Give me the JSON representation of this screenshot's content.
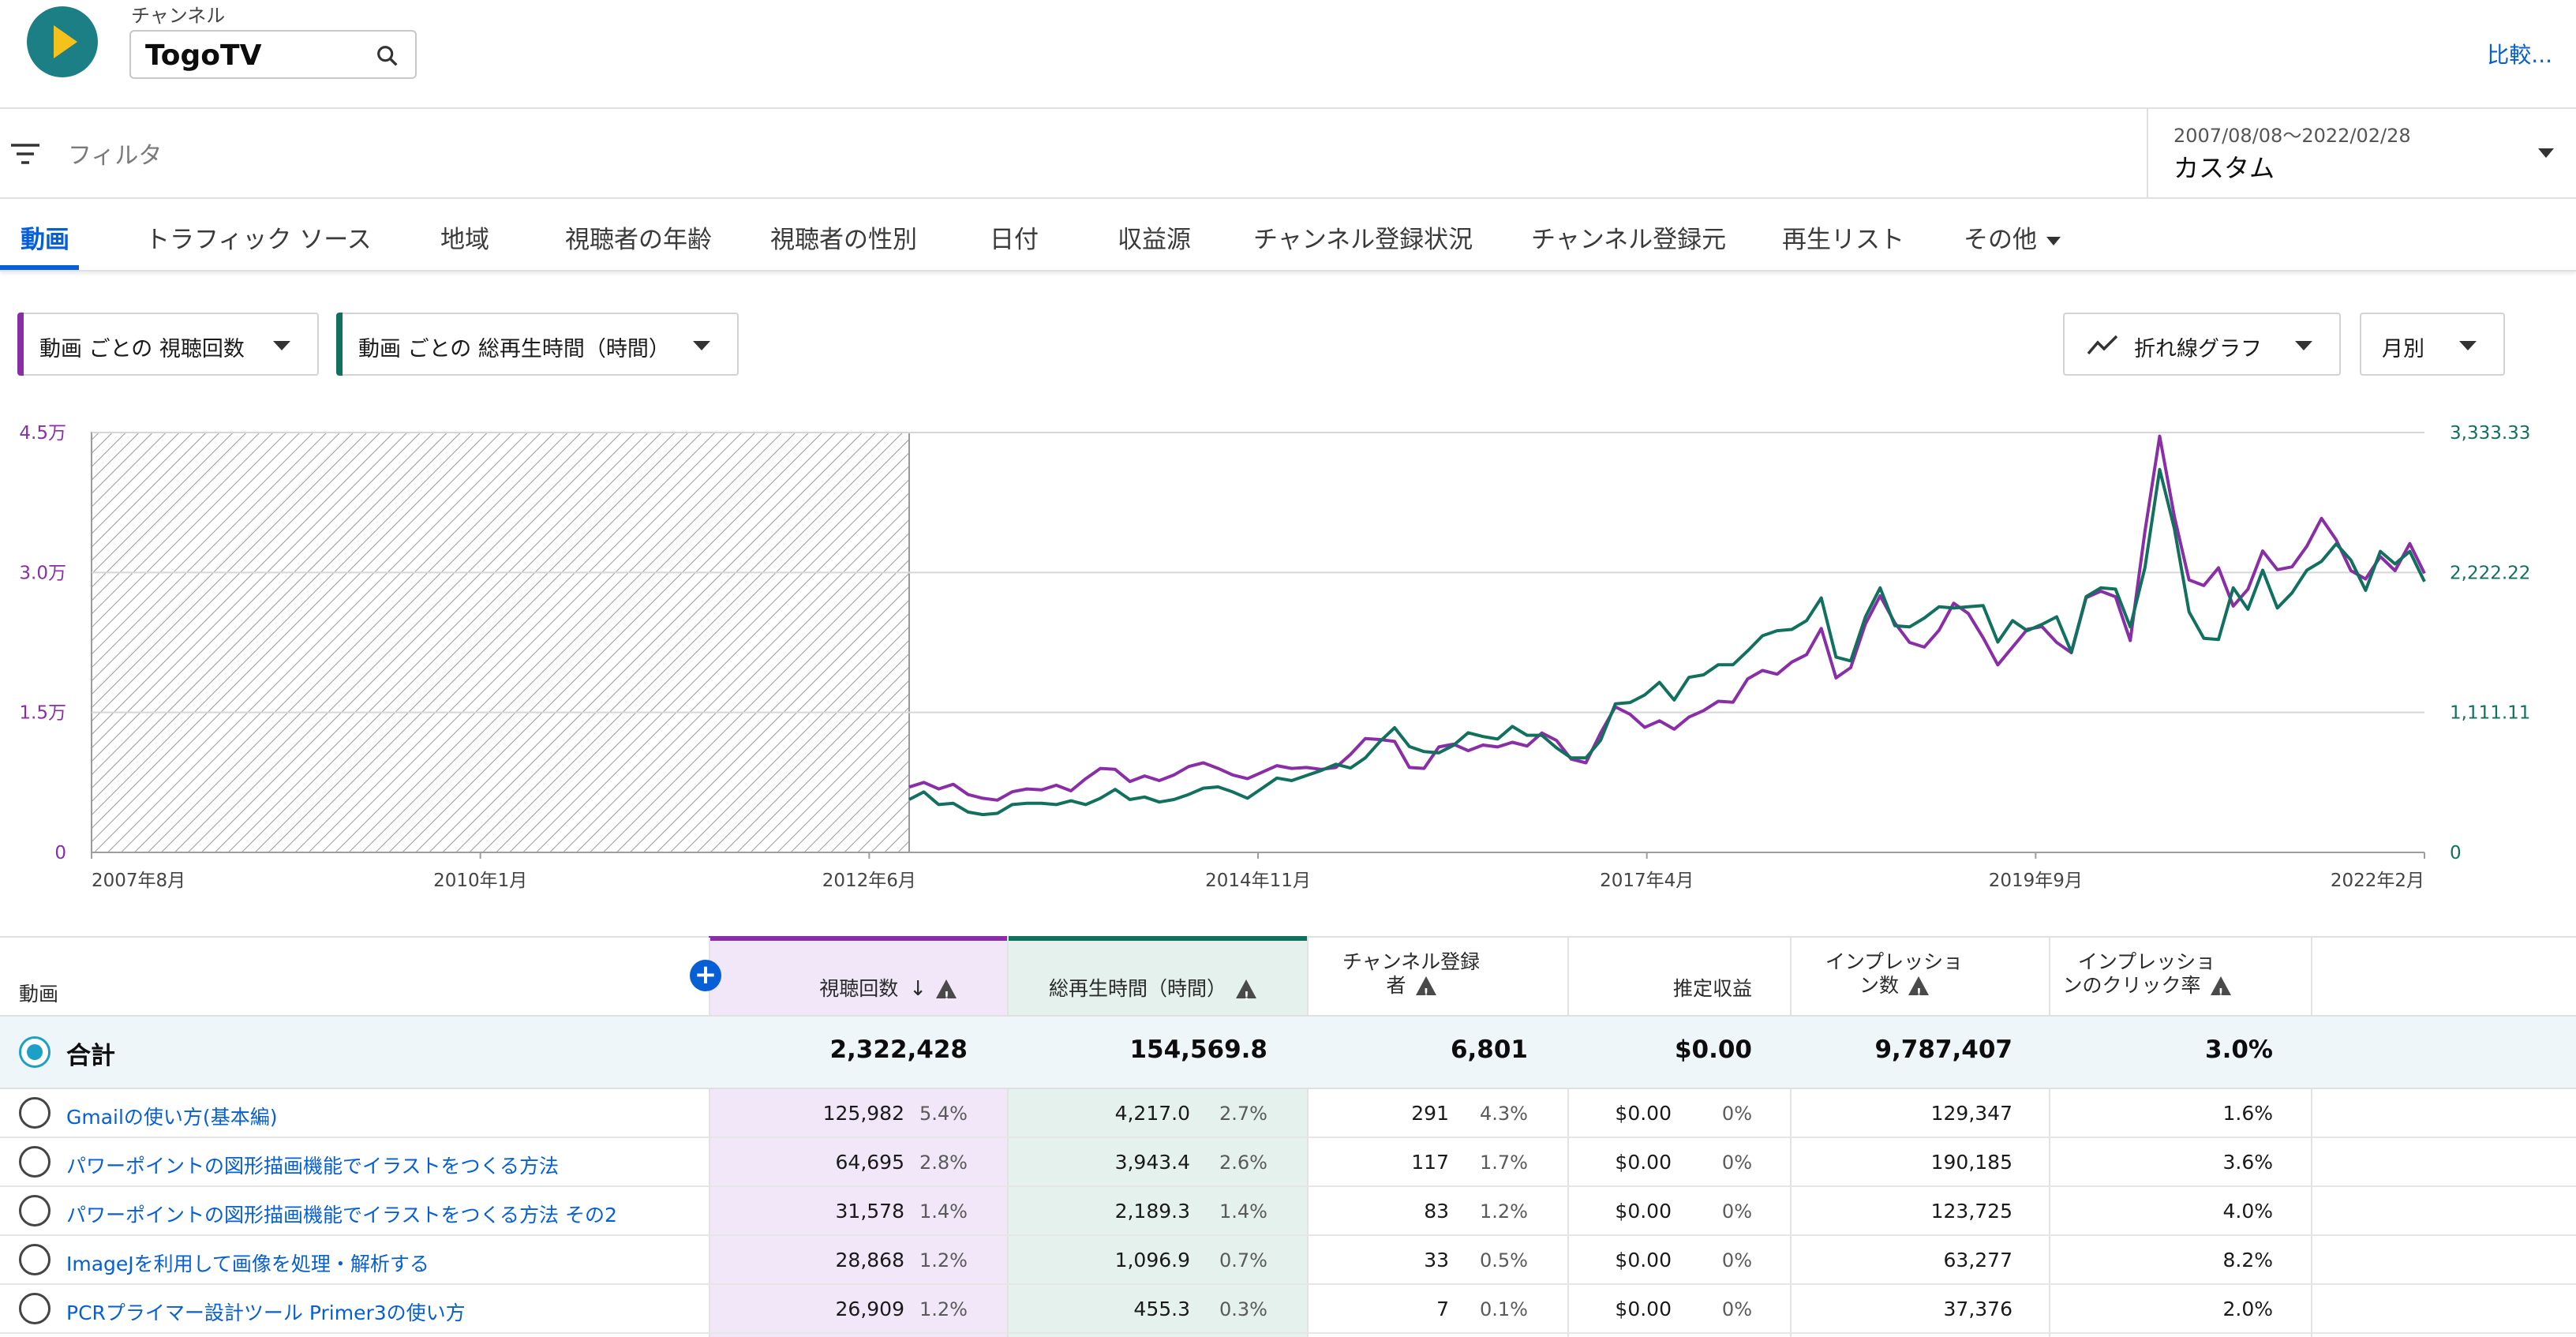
{
  "header": {
    "channel_label": "チャンネル",
    "channel_name": "TogoTV",
    "compare_label": "比較..."
  },
  "filter": {
    "placeholder": "フィルタ",
    "date_range": "2007/08/08～2022/02/28",
    "date_mode": "カスタム"
  },
  "tabs": [
    {
      "label": "動画",
      "active": true
    },
    {
      "label": "トラフィック ソース"
    },
    {
      "label": "地域"
    },
    {
      "label": "視聴者の年齢"
    },
    {
      "label": "視聴者の性別"
    },
    {
      "label": "日付"
    },
    {
      "label": "収益源"
    },
    {
      "label": "チャンネル登録状況"
    },
    {
      "label": "チャンネル登録元"
    },
    {
      "label": "再生リスト"
    },
    {
      "label": "その他"
    }
  ],
  "metric_selectors": {
    "primary": {
      "label": "動画 ごとの 視聴回数",
      "color": "#8a2ea8"
    },
    "secondary": {
      "label": "動画 ごとの 総再生時間（時間）",
      "color": "#12705e"
    },
    "chart_type": {
      "label": "折れ線グラフ",
      "icon": "line-chart-icon"
    },
    "interval": {
      "label": "月別"
    }
  },
  "chart_data": {
    "type": "line",
    "x_tick_labels": [
      "2007年8月",
      "2010年1月",
      "2012年6月",
      "2014年11月",
      "2017年4月",
      "2019年9月",
      "2022年2月"
    ],
    "y_left": {
      "ticks": [
        "0",
        "1.5万",
        "3.0万",
        "4.5万"
      ],
      "range": [
        0,
        45000
      ],
      "color": "#8a2ea8"
    },
    "y_right": {
      "ticks": [
        "0",
        "1,111.11",
        "2,222.22",
        "3,333.33"
      ],
      "range": [
        0,
        3333.33
      ],
      "color": "#12705e"
    },
    "no_data_until": "2012年6月",
    "grid": true,
    "series": [
      {
        "name": "動画 ごとの 視聴回数",
        "color": "#8a2ea8",
        "axis": "left",
        "values": [
          7000,
          7500,
          6800,
          7300,
          6200,
          5800,
          5600,
          6500,
          6800,
          6700,
          7200,
          6600,
          7900,
          9000,
          8900,
          7600,
          8200,
          7700,
          8300,
          9200,
          9600,
          9000,
          8300,
          7900,
          8600,
          9300,
          9000,
          9100,
          8900,
          9100,
          10500,
          12200,
          12100,
          11900,
          9100,
          9000,
          11300,
          11600,
          10900,
          11500,
          11300,
          11800,
          11400,
          12800,
          12000,
          10000,
          9600,
          12800,
          15600,
          14800,
          13400,
          14100,
          13200,
          14500,
          15200,
          16200,
          16100,
          18600,
          19500,
          19100,
          20400,
          21200,
          24000,
          18700,
          19800,
          24500,
          27500,
          24600,
          22500,
          22000,
          23800,
          26700,
          25600,
          23000,
          20100,
          22000,
          23900,
          24200,
          22500,
          21400,
          27300,
          28000,
          27400,
          22700,
          34400,
          44600,
          36000,
          29200,
          28600,
          30500,
          26400,
          28200,
          32300,
          30300,
          30600,
          32800,
          35800,
          33500,
          30200,
          29300,
          31700,
          30200,
          33100,
          29900
        ]
      },
      {
        "name": "動画 ごとの 総再生時間（時間）",
        "color": "#12705e",
        "axis": "right",
        "values": [
          420,
          480,
          380,
          390,
          320,
          300,
          310,
          380,
          390,
          390,
          380,
          410,
          380,
          430,
          500,
          420,
          440,
          400,
          420,
          460,
          510,
          520,
          480,
          430,
          510,
          590,
          570,
          610,
          650,
          700,
          670,
          750,
          880,
          990,
          840,
          800,
          790,
          850,
          950,
          920,
          900,
          1000,
          930,
          930,
          830,
          750,
          750,
          890,
          1180,
          1190,
          1250,
          1350,
          1210,
          1390,
          1410,
          1490,
          1490,
          1600,
          1720,
          1760,
          1770,
          1840,
          2020,
          1550,
          1520,
          1870,
          2100,
          1800,
          1790,
          1860,
          1950,
          1940,
          1950,
          1960,
          1670,
          1840,
          1760,
          1810,
          1870,
          1590,
          2030,
          2100,
          2090,
          1790,
          2260,
          3040,
          2570,
          1910,
          1700,
          1690,
          2100,
          1930,
          2240,
          1940,
          2060,
          2240,
          2310,
          2450,
          2320,
          2080,
          2390,
          2290,
          2390,
          2150
        ]
      }
    ]
  },
  "table": {
    "headers": {
      "video": "動画",
      "views": "視聴回数",
      "watch_time": "総再生時間（時間）",
      "subscribers_line1": "チャンネル登録",
      "subscribers_line2": "者",
      "revenue": "推定収益",
      "impressions_line1": "インプレッショ",
      "impressions_line2": "ン数",
      "ctr_line1": "インプレッショ",
      "ctr_line2": "ンのクリック率"
    },
    "total": {
      "label": "合計",
      "views": "2,322,428",
      "watch_time": "154,569.8",
      "subscribers": "6,801",
      "revenue": "$0.00",
      "impressions": "9,787,407",
      "ctr": "3.0%"
    },
    "rows": [
      {
        "title": "Gmailの使い方(基本編)",
        "views": "125,982",
        "views_pct": "5.4%",
        "watch": "4,217.0",
        "watch_pct": "2.7%",
        "subs": "291",
        "subs_pct": "4.3%",
        "revenue": "$0.00",
        "revenue_pct": "0%",
        "impressions": "129,347",
        "ctr": "1.6%"
      },
      {
        "title": "パワーポイントの図形描画機能でイラストをつくる方法",
        "views": "64,695",
        "views_pct": "2.8%",
        "watch": "3,943.4",
        "watch_pct": "2.6%",
        "subs": "117",
        "subs_pct": "1.7%",
        "revenue": "$0.00",
        "revenue_pct": "0%",
        "impressions": "190,185",
        "ctr": "3.6%"
      },
      {
        "title": "パワーポイントの図形描画機能でイラストをつくる方法 その2",
        "views": "31,578",
        "views_pct": "1.4%",
        "watch": "2,189.3",
        "watch_pct": "1.4%",
        "subs": "83",
        "subs_pct": "1.2%",
        "revenue": "$0.00",
        "revenue_pct": "0%",
        "impressions": "123,725",
        "ctr": "4.0%"
      },
      {
        "title": "ImageJを利用して画像を処理・解析する",
        "views": "28,868",
        "views_pct": "1.2%",
        "watch": "1,096.9",
        "watch_pct": "0.7%",
        "subs": "33",
        "subs_pct": "0.5%",
        "revenue": "$0.00",
        "revenue_pct": "0%",
        "impressions": "63,277",
        "ctr": "8.2%"
      },
      {
        "title": "PCRプライマー設計ツール Primer3の使い方",
        "views": "26,909",
        "views_pct": "1.2%",
        "watch": "455.3",
        "watch_pct": "0.3%",
        "subs": "7",
        "subs_pct": "0.1%",
        "revenue": "$0.00",
        "revenue_pct": "0%",
        "impressions": "37,376",
        "ctr": "2.0%"
      }
    ]
  }
}
